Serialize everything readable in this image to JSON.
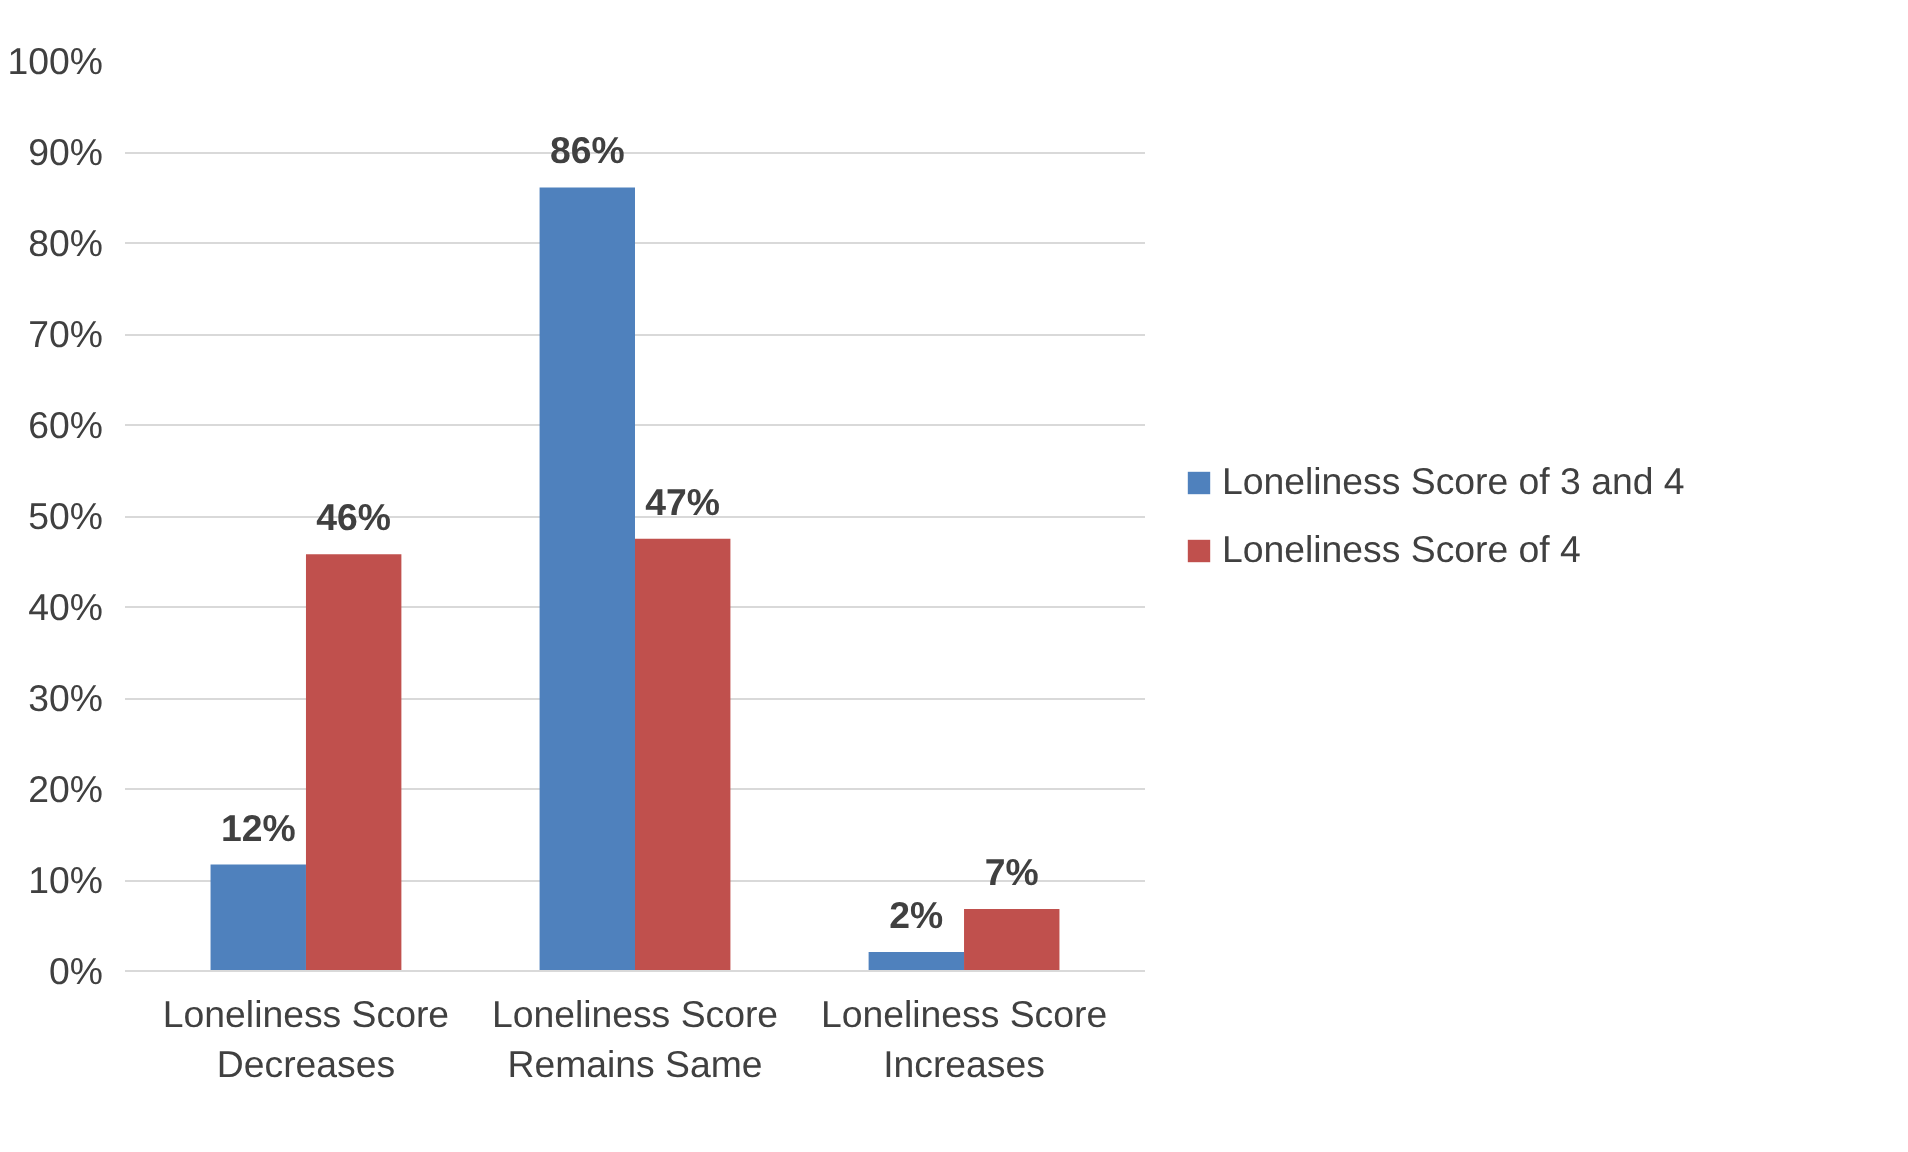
{
  "chart_data": {
    "type": "bar",
    "categories": [
      "Loneliness Score Decreases",
      "Loneliness Score Remains Same",
      "Loneliness Score Increases"
    ],
    "series": [
      {
        "name": "Loneliness Score of 3 and 4",
        "color": "#4f81bd",
        "values": [
          11.7,
          86.1,
          2.1
        ],
        "value_labels": [
          "12%",
          "86%",
          "2%"
        ]
      },
      {
        "name": "Loneliness Score of 4",
        "color": "#c0504d",
        "values": [
          45.8,
          47.5,
          6.8
        ],
        "value_labels": [
          "46%",
          "47%",
          "7%"
        ]
      }
    ],
    "ylim": [
      0,
      100
    ],
    "yticks": [
      {
        "value": 0,
        "label": "0%"
      },
      {
        "value": 10,
        "label": "10%"
      },
      {
        "value": 20,
        "label": "20%"
      },
      {
        "value": 30,
        "label": "30%"
      },
      {
        "value": 40,
        "label": "40%"
      },
      {
        "value": 50,
        "label": "50%"
      },
      {
        "value": 60,
        "label": "60%"
      },
      {
        "value": 70,
        "label": "70%"
      },
      {
        "value": 80,
        "label": "80%"
      },
      {
        "value": 90,
        "label": "90%"
      },
      {
        "value": 100,
        "label": "100%"
      }
    ],
    "grid": "y",
    "legend": "right"
  }
}
